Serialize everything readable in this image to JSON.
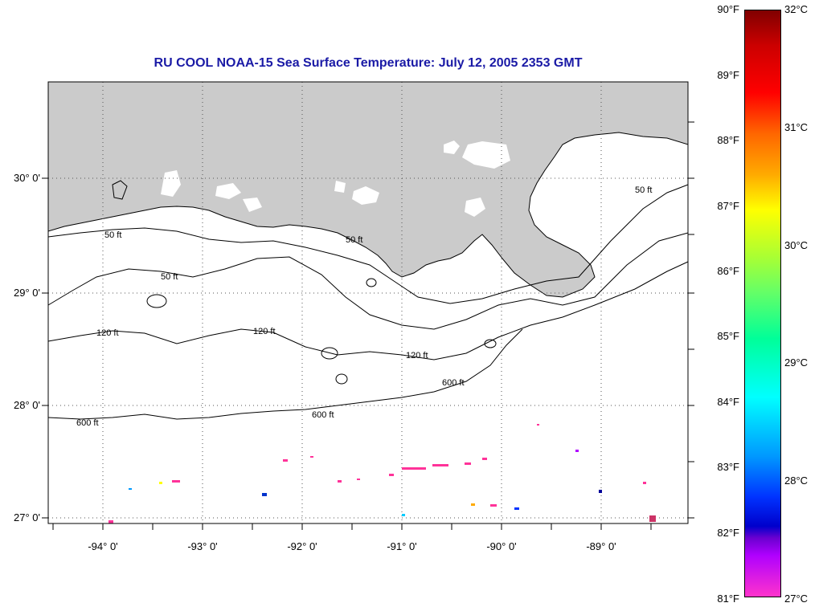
{
  "title": "RU COOL  NOAA-15  Sea Surface Temperature:  July 12, 2005 2353 GMT",
  "map": {
    "lat_labels": [
      "30° 0'",
      "29° 0'",
      "28° 0'",
      "27° 0'"
    ],
    "lon_labels": [
      "-94° 0'",
      "-93° 0'",
      "-92° 0'",
      "-91° 0'",
      "-90° 0'",
      "-89° 0'"
    ],
    "contour_labels": {
      "c50": "50 ft",
      "c120": "120 ft",
      "c600": "600 ft"
    },
    "land_color": "#cbcbcb",
    "ocean_color": "#ffffff"
  },
  "colorbar": {
    "fahrenheit": [
      "90°F",
      "89°F",
      "88°F",
      "87°F",
      "86°F",
      "85°F",
      "84°F",
      "83°F",
      "82°F",
      "81°F"
    ],
    "celsius": [
      "32°C",
      "31°C",
      "30°C",
      "29°C",
      "28°C",
      "27°C"
    ]
  }
}
